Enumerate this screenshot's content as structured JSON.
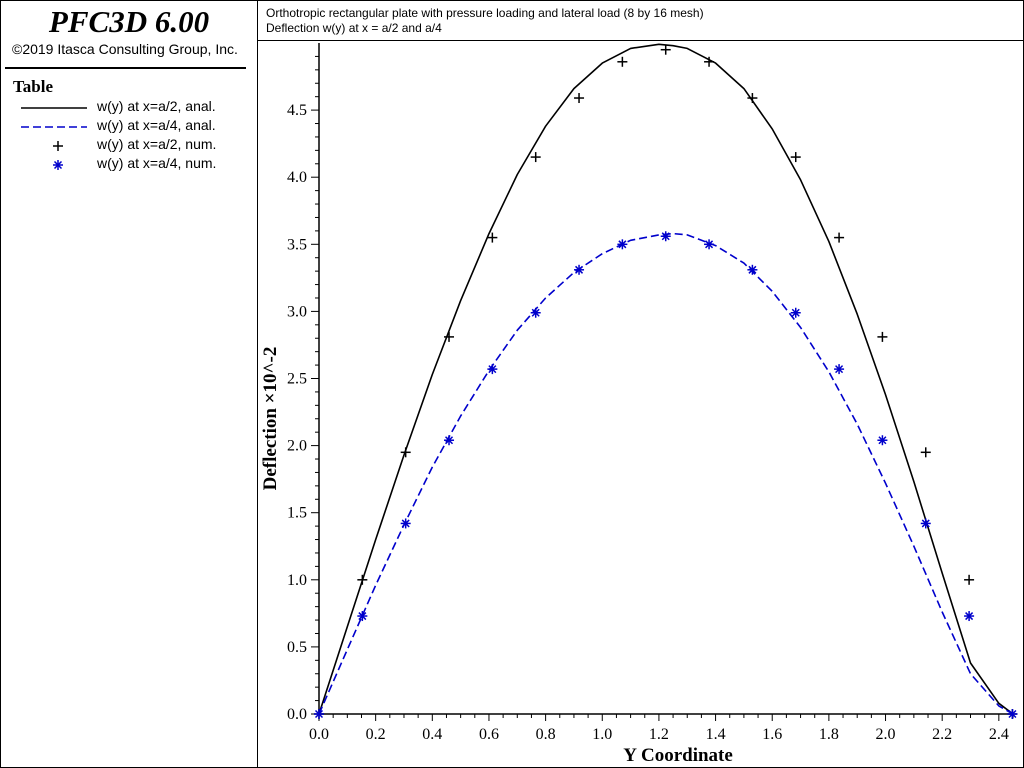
{
  "app": {
    "title": "PFC3D 6.00",
    "copyright": "©2019 Itasca Consulting Group, Inc."
  },
  "legend": {
    "title": "Table",
    "items": [
      {
        "label": "w(y) at x=a/2, anal.",
        "style": "solid-line",
        "color": "#000000"
      },
      {
        "label": "w(y) at x=a/4, anal.",
        "style": "dashed-line",
        "color": "#0000cc"
      },
      {
        "label": "w(y) at x=a/2, num.",
        "style": "plus-marker",
        "color": "#000000"
      },
      {
        "label": "w(y) at x=a/4, num.",
        "style": "star-marker",
        "color": "#0000cc"
      }
    ]
  },
  "header": {
    "line1": "Orthotropic rectangular plate with pressure loading and lateral load (8 by 16 mesh)",
    "line2": "Deflection w(y) at x = a/2 and a/4"
  },
  "chart_data": {
    "type": "line",
    "xlabel": "Y Coordinate",
    "ylabel": "Deflection ×10^-2",
    "xlim": [
      0,
      2.45
    ],
    "ylim": [
      0,
      5.0
    ],
    "xticks": [
      "0.0",
      "0.2",
      "0.4",
      "0.6",
      "0.8",
      "1.0",
      "1.2",
      "1.4",
      "1.6",
      "1.8",
      "2.0",
      "2.2",
      "2.4"
    ],
    "yticks": [
      "0.0",
      "0.5",
      "1.0",
      "1.5",
      "2.0",
      "2.5",
      "3.0",
      "3.5",
      "4.0",
      "4.5"
    ],
    "series": [
      {
        "name": "w(y) at x=a/2, anal.",
        "kind": "line",
        "color": "#000000",
        "dash": false,
        "x": [
          0,
          0.1,
          0.2,
          0.3,
          0.4,
          0.5,
          0.6,
          0.7,
          0.8,
          0.9,
          1.0,
          1.1,
          1.2,
          1.25,
          1.3,
          1.4,
          1.5,
          1.6,
          1.7,
          1.8,
          1.9,
          2.0,
          2.1,
          2.2,
          2.3,
          2.4,
          2.45
        ],
        "y": [
          0,
          0.65,
          1.3,
          1.93,
          2.53,
          3.08,
          3.58,
          4.02,
          4.38,
          4.66,
          4.85,
          4.96,
          4.99,
          4.98,
          4.96,
          4.85,
          4.66,
          4.36,
          3.98,
          3.52,
          2.98,
          2.38,
          1.73,
          1.05,
          0.38,
          0.08,
          0
        ]
      },
      {
        "name": "w(y) at x=a/4, anal.",
        "kind": "line",
        "color": "#0000cc",
        "dash": true,
        "x": [
          0,
          0.1,
          0.2,
          0.3,
          0.4,
          0.5,
          0.6,
          0.7,
          0.8,
          0.9,
          1.0,
          1.1,
          1.2,
          1.25,
          1.3,
          1.4,
          1.5,
          1.6,
          1.7,
          1.8,
          1.9,
          2.0,
          2.1,
          2.2,
          2.3,
          2.4,
          2.45
        ],
        "y": [
          0,
          0.48,
          0.96,
          1.41,
          1.84,
          2.22,
          2.56,
          2.86,
          3.1,
          3.29,
          3.43,
          3.53,
          3.57,
          3.58,
          3.57,
          3.49,
          3.36,
          3.15,
          2.88,
          2.55,
          2.16,
          1.72,
          1.25,
          0.76,
          0.3,
          0.06,
          0
        ]
      },
      {
        "name": "w(y) at x=a/2, num.",
        "kind": "marker",
        "marker": "plus",
        "color": "#000000",
        "x": [
          0,
          0.153,
          0.306,
          0.459,
          0.612,
          0.765,
          0.918,
          1.071,
          1.224,
          1.377,
          1.53,
          1.683,
          1.836,
          1.989,
          2.142,
          2.295,
          2.448
        ],
        "y": [
          0,
          1.0,
          1.95,
          2.81,
          3.55,
          4.15,
          4.59,
          4.86,
          4.95,
          4.86,
          4.59,
          4.15,
          3.55,
          2.81,
          1.95,
          1.0,
          0
        ]
      },
      {
        "name": "w(y) at x=a/4, num.",
        "kind": "marker",
        "marker": "star",
        "color": "#0000cc",
        "x": [
          0,
          0.153,
          0.306,
          0.459,
          0.612,
          0.765,
          0.918,
          1.071,
          1.224,
          1.377,
          1.53,
          1.683,
          1.836,
          1.989,
          2.142,
          2.295,
          2.448
        ],
        "y": [
          0,
          0.73,
          1.42,
          2.04,
          2.57,
          2.99,
          3.31,
          3.5,
          3.56,
          3.5,
          3.31,
          2.99,
          2.57,
          2.04,
          1.42,
          0.73,
          0
        ]
      }
    ]
  }
}
